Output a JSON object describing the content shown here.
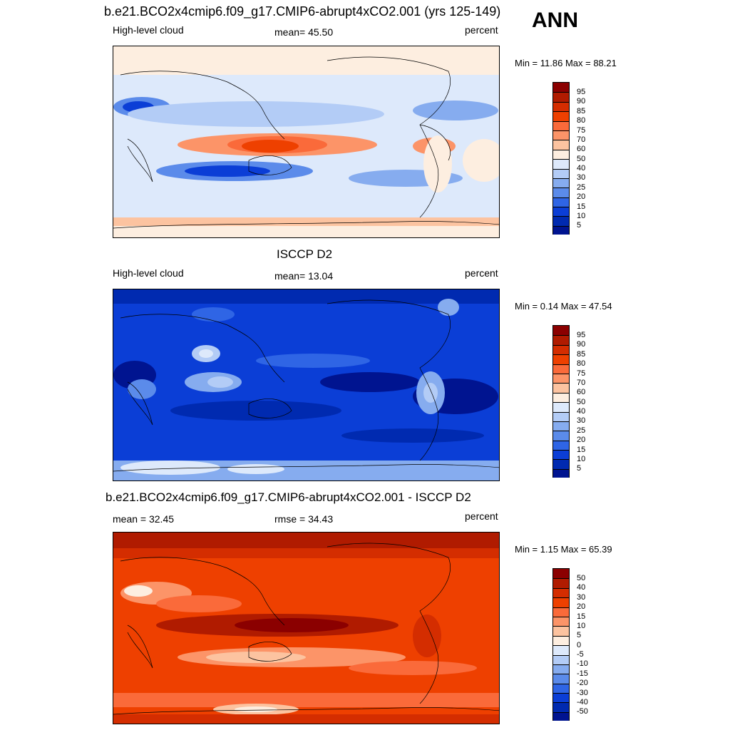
{
  "header": {
    "title": "b.e21.BCO2x4cmip6.f09_g17.CMIP6-abrupt4xCO2.001 (yrs 125-149)",
    "season": "ANN"
  },
  "panels": [
    {
      "id": "model",
      "title": "",
      "left_label": "High-level cloud",
      "center_label": "mean=  45.50",
      "right_label": "percent",
      "minmax": "Min =  11.86 Max =  88.21",
      "colorbar": {
        "labels": [
          "95",
          "90",
          "85",
          "80",
          "75",
          "70",
          "60",
          "50",
          "40",
          "30",
          "25",
          "20",
          "15",
          "10",
          "5"
        ],
        "colors": [
          "#8b0000",
          "#b01b00",
          "#d42d00",
          "#ee4000",
          "#fa6a3a",
          "#fc9468",
          "#fcc3a0",
          "#fdeee0",
          "#dde9fb",
          "#b3ccf6",
          "#86acef",
          "#5b8bea",
          "#2f65e5",
          "#0b3ed6",
          "#002ab0",
          "#001490"
        ]
      }
    },
    {
      "id": "obs",
      "title": "ISCCP D2",
      "left_label": "High-level cloud",
      "center_label": "mean=  13.04",
      "right_label": "percent",
      "minmax": "Min =   0.14 Max =  47.54",
      "colorbar": {
        "labels": [
          "95",
          "90",
          "85",
          "80",
          "75",
          "70",
          "60",
          "50",
          "40",
          "30",
          "25",
          "20",
          "15",
          "10",
          "5"
        ],
        "colors": [
          "#8b0000",
          "#b01b00",
          "#d42d00",
          "#ee4000",
          "#fa6a3a",
          "#fc9468",
          "#fcc3a0",
          "#fdeee0",
          "#dde9fb",
          "#b3ccf6",
          "#86acef",
          "#5b8bea",
          "#2f65e5",
          "#0b3ed6",
          "#002ab0",
          "#001490"
        ]
      }
    },
    {
      "id": "diff",
      "title": "b.e21.BCO2x4cmip6.f09_g17.CMIP6-abrupt4xCO2.001 - ISCCP D2",
      "left_label": "mean =  32.45",
      "center_label": "rmse =  34.43",
      "right_label": "percent",
      "minmax": "Min =   1.15 Max =  65.39",
      "colorbar": {
        "labels": [
          "50",
          "40",
          "30",
          "20",
          "15",
          "10",
          "5",
          "0",
          "-5",
          "-10",
          "-15",
          "-20",
          "-30",
          "-40",
          "-50"
        ],
        "colors": [
          "#8b0000",
          "#b01b00",
          "#d42d00",
          "#ee4000",
          "#fa6a3a",
          "#fc9468",
          "#fcc3a0",
          "#fdeee0",
          "#dde9fb",
          "#b3ccf6",
          "#86acef",
          "#5b8bea",
          "#2f65e5",
          "#0b3ed6",
          "#002ab0",
          "#001490"
        ]
      }
    }
  ]
}
